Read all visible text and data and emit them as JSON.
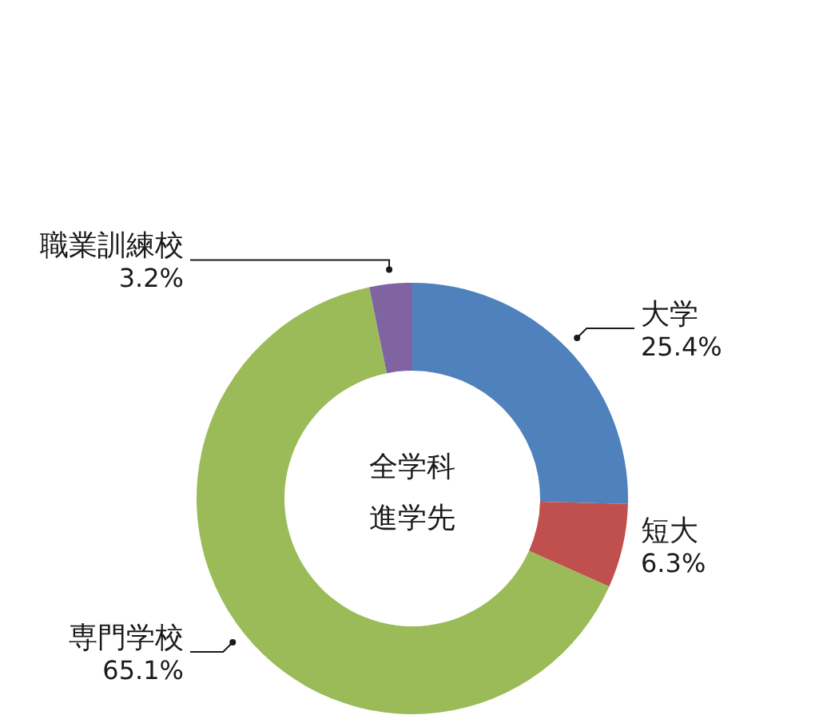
{
  "chart_data": {
    "type": "donut",
    "categories": [
      "大学",
      "短大",
      "専門学校",
      "職業訓練校"
    ],
    "values": [
      25.4,
      6.3,
      65.1,
      3.2
    ],
    "colors": [
      "#4f81bd",
      "#c0504d",
      "#9bbb59",
      "#8064a2"
    ],
    "value_labels": [
      "25.4%",
      "6.3%",
      "65.1%",
      "3.2%"
    ],
    "annotations": [
      "全学科",
      "進学先"
    ]
  }
}
